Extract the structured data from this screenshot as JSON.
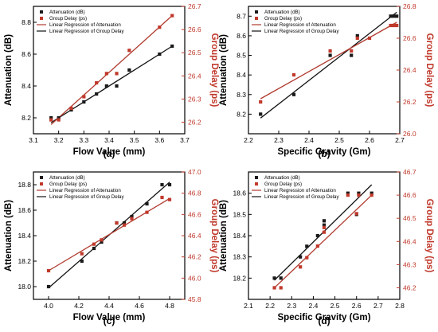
{
  "colors": {
    "attenuation": "#1a1a1a",
    "group_delay": "#c0392b",
    "attenuation_fit": "#111111",
    "group_delay_fit": "#b03a2e"
  },
  "chart_data": [
    {
      "panel": "(a)",
      "type": "scatter",
      "xlabel": "Flow Value (mm)",
      "ylabel_left": "Attenuation (dB)",
      "ylabel_right": "Group Delay (ps)",
      "xlim": [
        3.1,
        3.7
      ],
      "xticks": [
        "3.1",
        "3.2",
        "3.3",
        "3.4",
        "3.5",
        "3.6",
        "3.7"
      ],
      "ylim_left": [
        8.1,
        8.9
      ],
      "yticks_left": [
        "8.2",
        "8.4",
        "8.6",
        "8.8"
      ],
      "ylim_right": [
        26.15,
        26.7
      ],
      "yticks_right": [
        "26.2",
        "26.3",
        "26.4",
        "26.5",
        "26.6",
        "26.7"
      ],
      "legend": [
        "Attenuation (dB)",
        "Group Delay (ps)",
        "Linear Regression of Attenuation",
        "Linear Regression of Group Delay"
      ],
      "legend_position": "top-left",
      "series": [
        {
          "name": "Attenuation (dB)",
          "axis": "left",
          "marker": "square",
          "x": [
            3.17,
            3.2,
            3.25,
            3.3,
            3.35,
            3.39,
            3.43,
            3.48,
            3.6,
            3.65
          ],
          "y": [
            8.2,
            8.2,
            8.25,
            8.3,
            8.35,
            8.4,
            8.4,
            8.5,
            8.6,
            8.65
          ]
        },
        {
          "name": "Group Delay (ps)",
          "axis": "right",
          "marker": "square",
          "x": [
            3.17,
            3.2,
            3.25,
            3.3,
            3.35,
            3.39,
            3.43,
            3.48,
            3.6,
            3.65
          ],
          "y": [
            26.21,
            26.21,
            26.26,
            26.31,
            26.37,
            26.41,
            26.41,
            26.51,
            26.61,
            26.66
          ]
        },
        {
          "name": "Linear Regression of Attenuation",
          "axis": "left",
          "kind": "line",
          "x": [
            3.17,
            3.65
          ],
          "y": [
            8.17,
            8.65
          ]
        },
        {
          "name": "Linear Regression of Group Delay",
          "axis": "right",
          "kind": "line",
          "x": [
            3.17,
            3.65
          ],
          "y": [
            26.19,
            26.66
          ]
        }
      ]
    },
    {
      "panel": "(b)",
      "type": "scatter",
      "xlabel": "Specific Gravity (Gm)",
      "ylabel_left": "Attenuation (dB)",
      "ylabel_right": "Group Delay (ps)",
      "xlim": [
        2.2,
        2.7
      ],
      "xticks": [
        "2.2",
        "2.3",
        "2.4",
        "2.5",
        "2.6",
        "2.7"
      ],
      "ylim_left": [
        8.1,
        8.75
      ],
      "yticks_left": [
        "8.2",
        "8.3",
        "8.4",
        "8.5",
        "8.6",
        "8.7"
      ],
      "ylim_right": [
        26.0,
        26.8
      ],
      "yticks_right": [
        "26.0",
        "26.2",
        "26.4",
        "26.6",
        "26.8"
      ],
      "legend": [
        "Attenuation (dB)",
        "Group Delay (ps)",
        "Linear Regression of Attenuation",
        "Linear Regression of Group Delay"
      ],
      "legend_position": "top-left",
      "series": [
        {
          "name": "Attenuation (dB)",
          "axis": "left",
          "marker": "square",
          "x": [
            2.24,
            2.35,
            2.47,
            2.54,
            2.56,
            2.67,
            2.68,
            2.69
          ],
          "y": [
            8.2,
            8.3,
            8.5,
            8.5,
            8.6,
            8.7,
            8.7,
            8.7
          ]
        },
        {
          "name": "Group Delay (ps)",
          "axis": "right",
          "marker": "square",
          "x": [
            2.24,
            2.35,
            2.47,
            2.54,
            2.56,
            2.6,
            2.67,
            2.68,
            2.69
          ],
          "y": [
            26.2,
            26.37,
            26.52,
            26.52,
            26.6,
            26.6,
            26.68,
            26.68,
            26.68
          ]
        },
        {
          "name": "Linear Regression of Attenuation",
          "axis": "left",
          "kind": "line",
          "x": [
            2.24,
            2.69
          ],
          "y": [
            8.18,
            8.72
          ]
        },
        {
          "name": "Linear Regression of Group Delay",
          "axis": "right",
          "kind": "line",
          "x": [
            2.24,
            2.69
          ],
          "y": [
            26.22,
            26.7
          ]
        }
      ]
    },
    {
      "panel": "(c)",
      "type": "scatter",
      "xlabel": "Flow Value (mm)",
      "ylabel_left": "Attenuation (dB)",
      "ylabel_right": "Group Delay (ps)",
      "xlim": [
        3.9,
        4.9
      ],
      "xticks": [
        "4.0",
        "4.2",
        "4.4",
        "4.6",
        "4.8"
      ],
      "ylim_left": [
        17.9,
        18.9
      ],
      "yticks_left": [
        "18.0",
        "18.2",
        "18.4",
        "18.6",
        "18.8"
      ],
      "ylim_right": [
        45.8,
        47.0
      ],
      "yticks_right": [
        "45.8",
        "46.0",
        "46.2",
        "46.4",
        "46.6",
        "46.8",
        "47.0"
      ],
      "legend": [
        "Attenuation (dB)",
        "Group Delay (ps)",
        "Linear Regression of Attenuation",
        "Linear Regression of Group Delay"
      ],
      "legend_position": "top-left",
      "series": [
        {
          "name": "Attenuation (dB)",
          "axis": "left",
          "marker": "square",
          "x": [
            4.0,
            4.22,
            4.3,
            4.35,
            4.45,
            4.5,
            4.55,
            4.65,
            4.75,
            4.8
          ],
          "y": [
            18.0,
            18.2,
            18.3,
            18.35,
            18.5,
            18.5,
            18.55,
            18.65,
            18.8,
            18.8
          ]
        },
        {
          "name": "Group Delay (ps)",
          "axis": "right",
          "marker": "square",
          "x": [
            4.0,
            4.22,
            4.3,
            4.35,
            4.45,
            4.5,
            4.55,
            4.65,
            4.75,
            4.8
          ],
          "y": [
            46.07,
            46.23,
            46.32,
            46.36,
            46.52,
            46.5,
            46.56,
            46.62,
            46.76,
            46.74
          ]
        },
        {
          "name": "Linear Regression of Attenuation",
          "axis": "left",
          "kind": "line",
          "x": [
            4.0,
            4.8
          ],
          "y": [
            17.99,
            18.82
          ]
        },
        {
          "name": "Linear Regression of Group Delay",
          "axis": "right",
          "kind": "line",
          "x": [
            4.0,
            4.8
          ],
          "y": [
            46.07,
            46.75
          ]
        }
      ]
    },
    {
      "panel": "(d)",
      "type": "scatter",
      "xlabel": "Specific Gravity (Gm)",
      "ylabel_left": "Attenuation (dB)",
      "ylabel_right": "Group Delay (ps)",
      "xlim": [
        2.1,
        2.8
      ],
      "xticks": [
        "2.1",
        "2.2",
        "2.3",
        "2.4",
        "2.5",
        "2.6",
        "2.7",
        "2.8"
      ],
      "ylim_left": [
        18.1,
        18.7
      ],
      "yticks_left": [
        "18.2",
        "18.3",
        "18.4",
        "18.5",
        "18.6"
      ],
      "ylim_right": [
        46.15,
        46.7
      ],
      "yticks_right": [
        "46.2",
        "46.3",
        "46.4",
        "46.5",
        "46.6",
        "46.7"
      ],
      "legend": [
        "Attenuation (dB)",
        "Group Delay (ps)",
        "Linear Regression of Attenuation",
        "Linear Regression of Group Delay"
      ],
      "legend_position": "top-left",
      "series": [
        {
          "name": "Attenuation (dB)",
          "axis": "left",
          "marker": "square",
          "x": [
            2.22,
            2.25,
            2.34,
            2.37,
            2.42,
            2.45,
            2.45,
            2.56,
            2.6,
            2.61,
            2.67
          ],
          "y": [
            18.2,
            18.2,
            18.3,
            18.35,
            18.4,
            18.45,
            18.47,
            18.6,
            18.5,
            18.6,
            18.6
          ]
        },
        {
          "name": "Group Delay (ps)",
          "axis": "right",
          "marker": "square",
          "x": [
            2.22,
            2.25,
            2.34,
            2.37,
            2.42,
            2.45,
            2.45,
            2.56,
            2.6,
            2.61,
            2.67
          ],
          "y": [
            46.2,
            46.2,
            46.29,
            46.33,
            46.38,
            46.44,
            46.46,
            46.6,
            46.52,
            46.6,
            46.6
          ]
        },
        {
          "name": "Linear Regression of Attenuation",
          "axis": "left",
          "kind": "line",
          "x": [
            2.22,
            2.67
          ],
          "y": [
            18.19,
            18.64
          ]
        },
        {
          "name": "Linear Regression of Group Delay",
          "axis": "right",
          "kind": "line",
          "x": [
            2.22,
            2.67
          ],
          "y": [
            46.2,
            46.6
          ]
        }
      ]
    }
  ]
}
